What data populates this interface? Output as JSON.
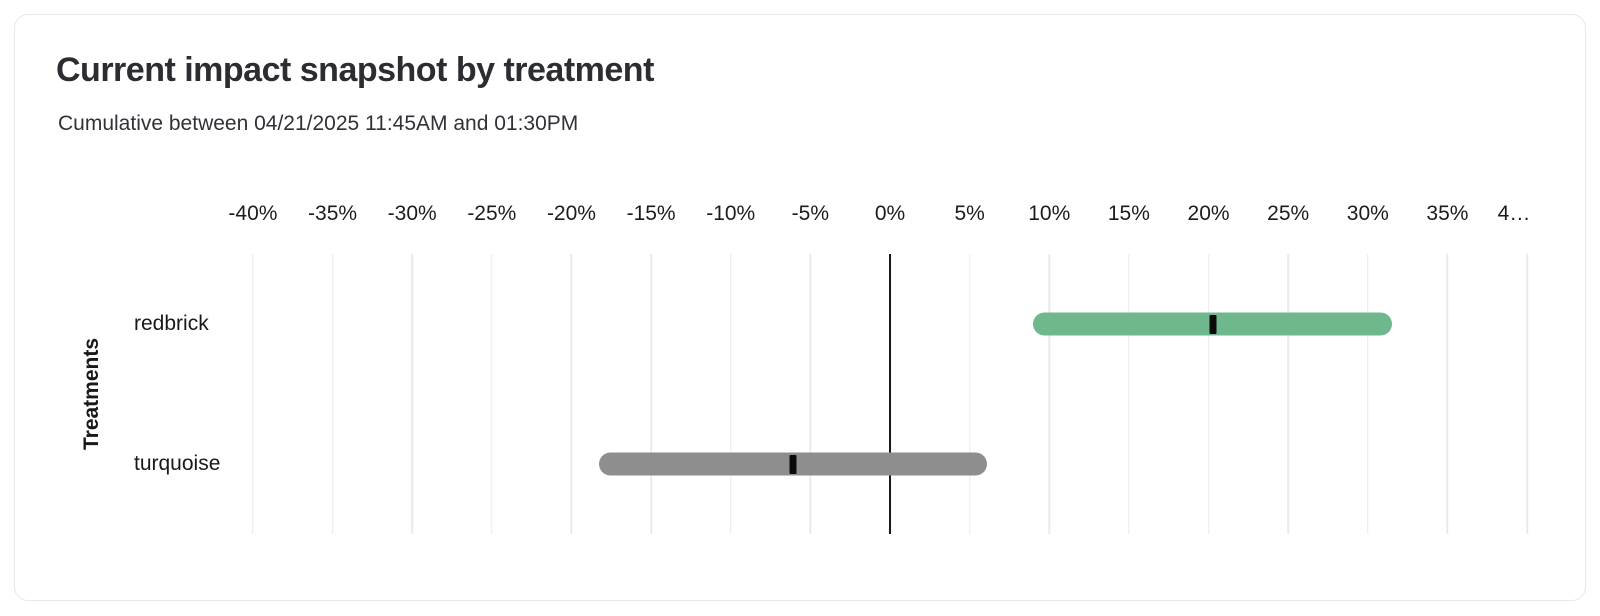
{
  "header": {
    "title": "Current impact snapshot by treatment",
    "subtitle": "Cumulative between 04/21/2025 11:45AM and 01:30PM"
  },
  "chart_data": {
    "type": "bar",
    "variant": "horizontal-interval-bars-with-point-estimate",
    "title": "Current impact snapshot by treatment",
    "subtitle": "Cumulative between 04/21/2025 11:45AM and 01:30PM",
    "xlabel": "",
    "ylabel": "Treatments",
    "x_unit": "%",
    "x_range": [
      -41,
      41
    ],
    "x_ticks": [
      {
        "label": "-40%",
        "value": -40
      },
      {
        "label": "-35%",
        "value": -35
      },
      {
        "label": "-30%",
        "value": -30
      },
      {
        "label": "-25%",
        "value": -25
      },
      {
        "label": "-20%",
        "value": -20
      },
      {
        "label": "-15%",
        "value": -15
      },
      {
        "label": "-10%",
        "value": -10
      },
      {
        "label": "-5%",
        "value": -5
      },
      {
        "label": "0%",
        "value": 0
      },
      {
        "label": "5%",
        "value": 5
      },
      {
        "label": "10%",
        "value": 10
      },
      {
        "label": "15%",
        "value": 15
      },
      {
        "label": "20%",
        "value": 20
      },
      {
        "label": "25%",
        "value": 25
      },
      {
        "label": "30%",
        "value": 30
      },
      {
        "label": "35%",
        "value": 35
      },
      {
        "label": "4…",
        "value": 40,
        "clipped": true
      }
    ],
    "zero_line": 0,
    "grid": "vertical",
    "legend": false,
    "categories": [
      "redbrick",
      "turquoise"
    ],
    "series": [
      {
        "name": "redbrick",
        "low": 9.0,
        "mid": 20.3,
        "high": 31.5,
        "color": "#6fb78c"
      },
      {
        "name": "turquoise",
        "low": -18.3,
        "mid": -6.1,
        "high": 6.1,
        "color": "#8e8e8e"
      }
    ],
    "colors": {
      "grid": "#eaeaea",
      "zero_line": "#1a1a1a",
      "marker": "#0a0a0a",
      "title": "#2b2d31",
      "subtitle": "#2f3237",
      "tick": "#1a1c1e",
      "card_border": "#e6e7e9",
      "background": "#ffffff"
    }
  }
}
